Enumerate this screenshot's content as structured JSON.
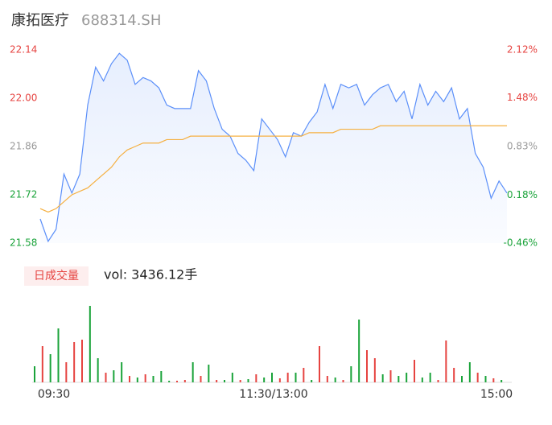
{
  "chart_data": [
    {
      "type": "line",
      "title": "康拓医疗",
      "subtitle": "688314.SH",
      "ylim": [
        21.58,
        22.14
      ],
      "yticks": [
        22.14,
        {
          "value": 22.0,
          "label": "22.00"
        },
        21.86,
        21.72,
        21.58
      ],
      "y2lim": [
        -0.46,
        2.12
      ],
      "y2ticks": [
        {
          "value": 2.12,
          "label": "2.12%"
        },
        {
          "value": 1.48,
          "label": "1.48%"
        },
        {
          "value": 0.83,
          "label": "0.83%"
        },
        {
          "value": 0.18,
          "label": "0.18%"
        },
        {
          "value": -0.46,
          "label": "-0.46%"
        }
      ],
      "tick_colors": [
        "#e64340",
        "#e64340",
        "#999999",
        "#1aa33a",
        "#1aa33a"
      ],
      "series": [
        {
          "name": "price",
          "color": "#5b8ff9",
          "values": [
            21.65,
            21.585,
            21.62,
            21.78,
            21.725,
            21.78,
            21.98,
            22.09,
            22.05,
            22.1,
            22.13,
            22.11,
            22.04,
            22.06,
            22.05,
            22.03,
            21.98,
            21.97,
            21.97,
            21.97,
            22.08,
            22.05,
            21.97,
            21.91,
            21.89,
            21.84,
            21.82,
            21.79,
            21.94,
            21.91,
            21.88,
            21.83,
            21.9,
            21.89,
            21.93,
            21.96,
            22.04,
            21.97,
            22.04,
            22.03,
            22.04,
            21.98,
            22.01,
            22.03,
            22.04,
            21.99,
            22.02,
            21.94,
            22.04,
            21.98,
            22.02,
            21.99,
            22.03,
            21.94,
            21.97,
            21.84,
            21.8,
            21.71,
            21.76,
            21.725
          ]
        },
        {
          "name": "average",
          "color": "#f5b041",
          "values": [
            21.68,
            21.67,
            21.68,
            21.7,
            21.72,
            21.73,
            21.74,
            21.76,
            21.78,
            21.8,
            21.83,
            21.85,
            21.86,
            21.87,
            21.87,
            21.87,
            21.88,
            21.88,
            21.88,
            21.89,
            21.89,
            21.89,
            21.89,
            21.89,
            21.89,
            21.89,
            21.89,
            21.89,
            21.89,
            21.89,
            21.89,
            21.89,
            21.89,
            21.89,
            21.9,
            21.9,
            21.9,
            21.9,
            21.91,
            21.91,
            21.91,
            21.91,
            21.91,
            21.92,
            21.92,
            21.92,
            21.92,
            21.92,
            21.92,
            21.92,
            21.92,
            21.92,
            21.92,
            21.92,
            21.92,
            21.92,
            21.92,
            21.92,
            21.92,
            21.92
          ]
        }
      ]
    },
    {
      "type": "bar",
      "button": "日成交量",
      "label": "vol: 3436.12手",
      "categories": [
        "09:30",
        null,
        null,
        null,
        null,
        null,
        null,
        null,
        null,
        null,
        null,
        null,
        null,
        null,
        null,
        null,
        null,
        null,
        null,
        null,
        null,
        null,
        null,
        null,
        null,
        null,
        null,
        null,
        null,
        "11:30/13:00",
        null,
        null,
        null,
        null,
        null,
        null,
        null,
        null,
        null,
        null,
        null,
        null,
        null,
        null,
        null,
        null,
        null,
        null,
        null,
        null,
        null,
        null,
        null,
        null,
        null,
        null,
        null,
        null,
        null,
        "15:00"
      ],
      "ylim": [
        0,
        100
      ],
      "values": [
        20,
        45,
        35,
        67,
        25,
        50,
        53,
        95,
        30,
        12,
        15,
        25,
        8,
        6,
        10,
        8,
        14,
        2,
        2,
        3,
        25,
        8,
        22,
        3,
        3,
        12,
        3,
        4,
        10,
        6,
        12,
        5,
        12,
        12,
        18,
        3,
        45,
        8,
        6,
        3,
        20,
        78,
        40,
        30,
        10,
        15,
        8,
        12,
        28,
        6,
        12,
        3,
        52,
        18,
        8,
        25,
        12,
        8,
        5,
        3
      ],
      "colors": [
        "g",
        "r",
        "g",
        "g",
        "r",
        "r",
        "r",
        "g",
        "g",
        "r",
        "g",
        "g",
        "r",
        "g",
        "r",
        "g",
        "g",
        "g",
        "r",
        "r",
        "g",
        "r",
        "g",
        "r",
        "g",
        "g",
        "r",
        "g",
        "r",
        "g",
        "g",
        "r",
        "r",
        "g",
        "r",
        "g",
        "r",
        "r",
        "g",
        "r",
        "g",
        "g",
        "r",
        "r",
        "g",
        "r",
        "g",
        "g",
        "r",
        "g",
        "g",
        "r",
        "r",
        "r",
        "g",
        "g",
        "r",
        "g",
        "r",
        "g"
      ],
      "palette": {
        "r": "#e64340",
        "g": "#1aa33a"
      }
    }
  ]
}
